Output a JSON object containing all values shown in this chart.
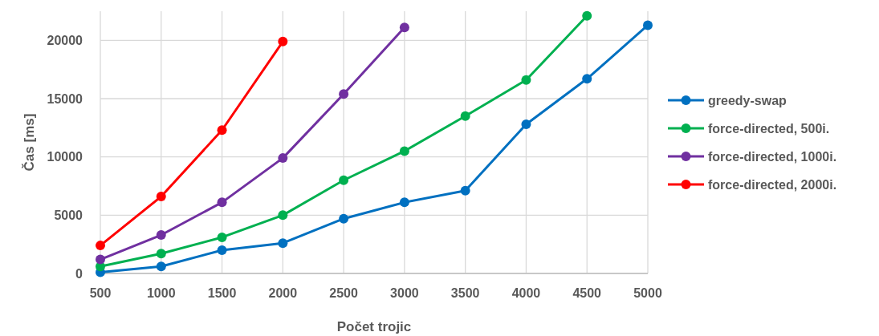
{
  "chart_data": {
    "type": "line",
    "xlabel": "Počet trojic",
    "ylabel": "Čas [ms]",
    "x": [
      500,
      1000,
      1500,
      2000,
      2500,
      3000,
      3500,
      4000,
      4500,
      5000
    ],
    "xlim": [
      500,
      5000
    ],
    "xticks": [
      500,
      1000,
      1500,
      2000,
      2500,
      3000,
      3500,
      4000,
      4500,
      5000
    ],
    "ylim": [
      0,
      22500
    ],
    "yticks": [
      0,
      5000,
      10000,
      15000,
      20000
    ],
    "grid": true,
    "legend": "right",
    "marker": "circle",
    "line_style": "solid",
    "series": [
      {
        "name": "greedy-swap",
        "color": "#0070c0",
        "values": [
          100,
          600,
          2000,
          2600,
          4700,
          6100,
          7100,
          12800,
          16700,
          21300
        ]
      },
      {
        "name": "force-directed, 500i.",
        "color": "#00b050",
        "values": [
          600,
          1700,
          3100,
          5000,
          8000,
          10500,
          13500,
          16600,
          22100,
          null
        ]
      },
      {
        "name": "force-directed, 1000i.",
        "color": "#7030a0",
        "values": [
          1200,
          3300,
          6100,
          9900,
          15400,
          21100,
          null,
          null,
          null,
          null
        ]
      },
      {
        "name": "force-directed, 2000i.",
        "color": "#ff0000",
        "values": [
          2400,
          6600,
          12300,
          19900,
          null,
          null,
          null,
          null,
          null,
          null
        ]
      }
    ]
  }
}
